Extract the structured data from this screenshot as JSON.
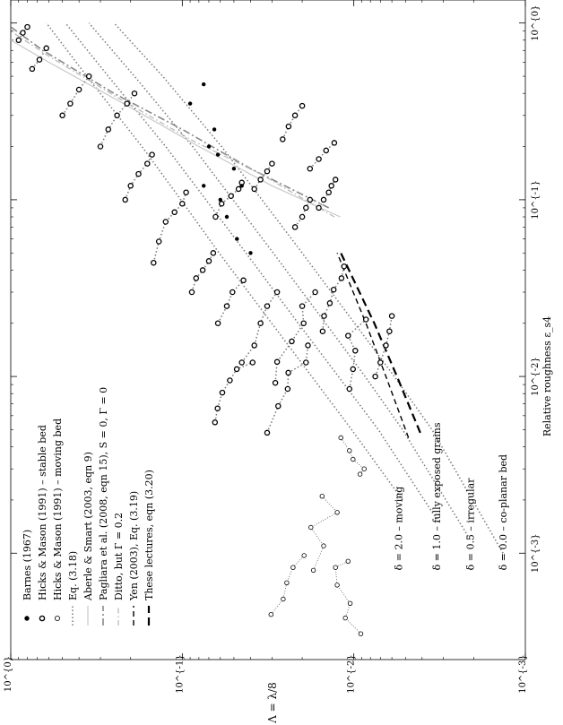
{
  "chart_data": {
    "type": "scatter",
    "orientation": "rotated-90-clockwise",
    "xscale": "log",
    "yscale": "log",
    "xlabel": "Relative roughness ε_s4",
    "ylabel": "Λ = λ/8",
    "xlim": [
      0.00025,
      1.35
    ],
    "ylim": [
      0.001,
      1.0
    ],
    "x_ticks": [
      "10^{-3}",
      "10^{-2}",
      "10^{-1}",
      "10^{0}"
    ],
    "y_ticks": [
      "10^{-3}",
      "10^{-2}",
      "10^{-1}",
      "10^{0}"
    ],
    "x_tick_values": [
      0.001,
      0.01,
      0.1,
      1
    ],
    "y_tick_values": [
      0.001,
      0.01,
      0.1,
      1
    ],
    "legend_position": "lower-left of rotated page",
    "legend": [
      {
        "label": "Barnes (1967)",
        "marker": "filled-dot",
        "color": "#000000"
      },
      {
        "label": "Hicks & Mason (1991) – stable bed",
        "marker": "open-circle-thick",
        "color": "#000000"
      },
      {
        "label": "Hicks & Mason (1991) – moving bed",
        "marker": "open-circle-thin",
        "color": "#000000"
      },
      {
        "label": "Eq. (3.18)",
        "line": "dotted",
        "color": "#777777"
      },
      {
        "label": "Aberle & Smart (2003, eqn 9)",
        "line": "solid-light",
        "color": "#c8c8c8"
      },
      {
        "label": "Pagliara et al. (2008, eqn 15), S = 0, Γ = 0",
        "line": "dash-dot",
        "color": "#888888"
      },
      {
        "label": "Ditto, but Γ = 0.2",
        "line": "dash-dot-light",
        "color": "#b5b5b5"
      },
      {
        "label": "Yen (2003), Eq. (3.19)",
        "line": "dashed",
        "color": "#000000"
      },
      {
        "label": "These lectures, eqn (3.20)",
        "line": "dashed-heavy",
        "color": "#000000"
      }
    ],
    "annotations": [
      {
        "text": "δ = 2.0 – moving",
        "x": 0.0008,
        "y": 0.0055
      },
      {
        "text": "δ = 1.0 – fully exposed grains",
        "x": 0.0008,
        "y": 0.0033
      },
      {
        "text": "δ = 0.5 – irregular",
        "x": 0.0008,
        "y": 0.0021
      },
      {
        "text": "δ = 0.0 – co-planar bed",
        "x": 0.0008,
        "y": 0.00135
      }
    ],
    "series": [
      {
        "name": "Eq. (3.18)",
        "style": "dotted",
        "points": [
          [
            0.002,
            0.0052
          ],
          [
            0.005,
            0.0103
          ],
          [
            0.01,
            0.0176
          ],
          [
            0.02,
            0.0301
          ],
          [
            0.05,
            0.061
          ],
          [
            0.1,
            0.102
          ],
          [
            0.2,
            0.172
          ],
          [
            0.5,
            0.36
          ],
          [
            1.0,
            0.62
          ]
        ]
      },
      {
        "name": "Eq. (3.18)",
        "style": "dotted",
        "points": [
          [
            0.0015,
            0.0032
          ],
          [
            0.005,
            0.0072
          ],
          [
            0.01,
            0.0123
          ],
          [
            0.02,
            0.0211
          ],
          [
            0.05,
            0.0425
          ],
          [
            0.1,
            0.0728
          ],
          [
            0.2,
            0.125
          ],
          [
            0.5,
            0.27
          ],
          [
            1.0,
            0.48
          ]
        ]
      },
      {
        "name": "Eq. (3.18)",
        "style": "dotted",
        "points": [
          [
            0.0012,
            0.0021
          ],
          [
            0.005,
            0.0052
          ],
          [
            0.01,
            0.0086
          ],
          [
            0.02,
            0.0146
          ],
          [
            0.05,
            0.0295
          ],
          [
            0.1,
            0.0506
          ],
          [
            0.2,
            0.087
          ],
          [
            0.5,
            0.19
          ],
          [
            1.0,
            0.35
          ]
        ]
      },
      {
        "name": "Eq. (3.18)",
        "style": "dotted",
        "points": [
          [
            0.001,
            0.00135
          ],
          [
            0.005,
            0.0035
          ],
          [
            0.01,
            0.0058
          ],
          [
            0.02,
            0.0099
          ],
          [
            0.05,
            0.02
          ],
          [
            0.1,
            0.0343
          ],
          [
            0.2,
            0.059
          ],
          [
            0.5,
            0.13
          ],
          [
            1.0,
            0.25
          ]
        ]
      },
      {
        "name": "Aberle & Smart (2003, eqn 9)",
        "style": "solid-light",
        "points": [
          [
            0.08,
            0.012
          ],
          [
            0.12,
            0.03
          ],
          [
            0.2,
            0.08
          ],
          [
            0.35,
            0.22
          ],
          [
            0.6,
            0.6
          ],
          [
            0.8,
            1.0
          ]
        ]
      },
      {
        "name": "Pagliara et al. (2008, eqn 15), S = 0, Γ = 0",
        "style": "dash-dot",
        "points": [
          [
            0.09,
            0.014
          ],
          [
            0.15,
            0.04
          ],
          [
            0.25,
            0.1
          ],
          [
            0.4,
            0.25
          ],
          [
            0.7,
            0.65
          ],
          [
            0.95,
            1.0
          ]
        ]
      },
      {
        "name": "Ditto, but Γ = 0.2",
        "style": "dash-dot-light",
        "points": [
          [
            0.08,
            0.013
          ],
          [
            0.14,
            0.035
          ],
          [
            0.22,
            0.09
          ],
          [
            0.38,
            0.24
          ],
          [
            0.65,
            0.6
          ],
          [
            0.9,
            1.0
          ]
        ]
      },
      {
        "name": "Yen (2003), Eq. (3.19)",
        "style": "dashed",
        "points": [
          [
            0.0045,
            0.0048
          ],
          [
            0.01,
            0.0065
          ],
          [
            0.02,
            0.0085
          ],
          [
            0.05,
            0.0125
          ]
        ]
      },
      {
        "name": "These lectures, eqn (3.20)",
        "style": "dashed-heavy",
        "points": [
          [
            0.0048,
            0.0041
          ],
          [
            0.01,
            0.0056
          ],
          [
            0.02,
            0.0076
          ],
          [
            0.05,
            0.0119
          ]
        ]
      },
      {
        "name": "Hicks & Mason (1991) – moving bed",
        "style": "dotted-thin",
        "marker": "open-circle-thin",
        "points": [
          [
            0.00045,
            0.0304
          ],
          [
            0.00055,
            0.0258
          ],
          [
            0.00068,
            0.0246
          ],
          [
            0.00083,
            0.0226
          ],
          [
            0.00097,
            0.0195
          ]
        ]
      },
      {
        "name": "Hicks & Mason (1991) – moving bed",
        "style": "dotted-thin",
        "marker": "open-circle-thin",
        "points": [
          [
            0.00035,
            0.0091
          ],
          [
            0.00043,
            0.0112
          ],
          [
            0.00052,
            0.0105
          ],
          [
            0.00066,
            0.0125
          ],
          [
            0.00083,
            0.0128
          ],
          [
            0.0009,
            0.0108
          ]
        ]
      },
      {
        "name": "Hicks & Mason (1991) – moving bed",
        "style": "dotted-thin",
        "marker": "open-circle-thin",
        "points": [
          [
            0.0008,
            0.0172
          ],
          [
            0.0011,
            0.015
          ],
          [
            0.0014,
            0.0178
          ],
          [
            0.0017,
            0.0125
          ],
          [
            0.0021,
            0.0153
          ]
        ]
      },
      {
        "name": "Hicks & Mason (1991) – moving bed",
        "style": "dotted-thin",
        "marker": "open-circle-thin",
        "points": [
          [
            0.0045,
            0.0119
          ],
          [
            0.0038,
            0.0106
          ],
          [
            0.0034,
            0.0101
          ],
          [
            0.003,
            0.0087
          ],
          [
            0.0028,
            0.0092
          ]
        ]
      },
      {
        "name": "Hicks & Mason (1991) – stable bed",
        "style": "dotted",
        "marker": "open-circle-thick",
        "points": [
          [
            0.0055,
            0.0645
          ],
          [
            0.0066,
            0.0623
          ],
          [
            0.0081,
            0.0584
          ],
          [
            0.0095,
            0.0528
          ],
          [
            0.011,
            0.0481
          ],
          [
            0.012,
            0.0389
          ]
        ]
      },
      {
        "name": "Hicks & Mason (1991) – stable bed",
        "style": "dotted",
        "marker": "open-circle-thick",
        "points": [
          [
            0.0048,
            0.032
          ],
          [
            0.0068,
            0.0276
          ],
          [
            0.0085,
            0.0243
          ],
          [
            0.0105,
            0.0241
          ],
          [
            0.012,
            0.019
          ],
          [
            0.015,
            0.0185
          ]
        ]
      },
      {
        "name": "Hicks & Mason (1991) – stable bed",
        "style": "dotted",
        "marker": "open-circle-thick",
        "points": [
          [
            0.0092,
            0.0287
          ],
          [
            0.0121,
            0.028
          ],
          [
            0.0158,
            0.023
          ],
          [
            0.02,
            0.0196
          ],
          [
            0.025,
            0.02
          ],
          [
            0.03,
            0.0168
          ]
        ]
      },
      {
        "name": "Hicks & Mason (1991) – stable bed",
        "style": "dotted",
        "marker": "open-circle-thick",
        "points": [
          [
            0.018,
            0.0152
          ],
          [
            0.022,
            0.0149
          ],
          [
            0.026,
            0.0138
          ],
          [
            0.031,
            0.0131
          ],
          [
            0.036,
            0.0118
          ],
          [
            0.042,
            0.0114
          ]
        ]
      },
      {
        "name": "Hicks & Mason (1991) – stable bed",
        "style": "dotted",
        "marker": "open-circle-thick",
        "points": [
          [
            0.0085,
            0.0106
          ],
          [
            0.011,
            0.0101
          ],
          [
            0.014,
            0.0098
          ],
          [
            0.017,
            0.0108
          ],
          [
            0.021,
            0.0085
          ]
        ]
      },
      {
        "name": "Hicks & Mason (1991) – stable bed",
        "style": "dotted",
        "marker": "open-circle-thick",
        "points": [
          [
            0.01,
            0.0075
          ],
          [
            0.012,
            0.007
          ],
          [
            0.015,
            0.0065
          ],
          [
            0.018,
            0.0062
          ],
          [
            0.022,
            0.006
          ]
        ]
      },
      {
        "name": "Hicks & Mason (1991) – stable bed",
        "style": "dotted",
        "marker": "open-circle-thick",
        "points": [
          [
            0.012,
            0.045
          ],
          [
            0.015,
            0.038
          ],
          [
            0.02,
            0.035
          ],
          [
            0.025,
            0.032
          ],
          [
            0.03,
            0.028
          ]
        ]
      },
      {
        "name": "Hicks & Mason (1991) – stable bed",
        "style": "dotted",
        "marker": "open-circle-thick",
        "points": [
          [
            0.02,
            0.062
          ],
          [
            0.025,
            0.055
          ],
          [
            0.03,
            0.051
          ],
          [
            0.035,
            0.044
          ]
        ]
      },
      {
        "name": "Hicks & Mason (1991) – stable bed",
        "style": "dotted",
        "marker": "open-circle-thick",
        "points": [
          [
            0.03,
            0.088
          ],
          [
            0.036,
            0.083
          ],
          [
            0.04,
            0.076
          ],
          [
            0.045,
            0.07
          ],
          [
            0.05,
            0.066
          ]
        ]
      },
      {
        "name": "Hicks & Mason (1991) – stable bed",
        "style": "dotted",
        "marker": "open-circle-thick",
        "points": [
          [
            0.044,
            0.147
          ],
          [
            0.058,
            0.137
          ],
          [
            0.075,
            0.125
          ],
          [
            0.085,
            0.111
          ],
          [
            0.095,
            0.1
          ],
          [
            0.11,
            0.095
          ]
        ]
      },
      {
        "name": "Hicks & Mason (1991) – stable bed",
        "style": "dotted",
        "marker": "open-circle-thick",
        "points": [
          [
            0.08,
            0.064
          ],
          [
            0.095,
            0.059
          ],
          [
            0.105,
            0.052
          ],
          [
            0.115,
            0.047
          ],
          [
            0.125,
            0.045
          ]
        ]
      },
      {
        "name": "Hicks & Mason (1991) – stable bed",
        "style": "dotted",
        "marker": "open-circle-thick",
        "points": [
          [
            0.115,
            0.038
          ],
          [
            0.13,
            0.035
          ],
          [
            0.145,
            0.032
          ],
          [
            0.16,
            0.03
          ]
        ]
      },
      {
        "name": "Hicks & Mason (1991) – stable bed",
        "style": "dotted",
        "marker": "open-circle-thick",
        "points": [
          [
            0.1,
            0.215
          ],
          [
            0.12,
            0.2
          ],
          [
            0.14,
            0.18
          ],
          [
            0.16,
            0.16
          ],
          [
            0.18,
            0.15
          ]
        ]
      },
      {
        "name": "Hicks & Mason (1991) – stable bed",
        "style": "dotted",
        "marker": "open-circle-thick",
        "points": [
          [
            0.2,
            0.3
          ],
          [
            0.25,
            0.27
          ],
          [
            0.3,
            0.24
          ],
          [
            0.35,
            0.21
          ],
          [
            0.4,
            0.19
          ]
        ]
      },
      {
        "name": "Hicks & Mason (1991) – stable bed",
        "style": "dotted",
        "marker": "open-circle-thick",
        "points": [
          [
            0.3,
            0.5
          ],
          [
            0.35,
            0.45
          ],
          [
            0.42,
            0.4
          ],
          [
            0.5,
            0.35
          ]
        ]
      },
      {
        "name": "Hicks & Mason (1991) – stable bed",
        "style": "dotted",
        "marker": "open-circle-thick",
        "points": [
          [
            0.55,
            0.75
          ],
          [
            0.62,
            0.68
          ],
          [
            0.72,
            0.62
          ]
        ]
      },
      {
        "name": "Hicks & Mason (1991) – stable bed",
        "style": "dotted",
        "marker": "open-circle-thick",
        "points": [
          [
            0.8,
            0.9
          ],
          [
            0.88,
            0.85
          ],
          [
            0.95,
            0.8
          ]
        ]
      },
      {
        "name": "Hicks & Mason (1991) – stable bed",
        "style": "dotted",
        "marker": "open-circle-thick",
        "points": [
          [
            0.15,
            0.018
          ],
          [
            0.17,
            0.016
          ],
          [
            0.19,
            0.0145
          ],
          [
            0.21,
            0.013
          ]
        ]
      },
      {
        "name": "Hicks & Mason (1991) – stable bed",
        "style": "dotted",
        "marker": "open-circle-thick",
        "points": [
          [
            0.22,
            0.026
          ],
          [
            0.26,
            0.024
          ],
          [
            0.3,
            0.022
          ],
          [
            0.34,
            0.02
          ]
        ]
      },
      {
        "name": "Hicks & Mason (1991) – stable bed",
        "style": "dotted",
        "marker": "open-circle-thick",
        "points": [
          [
            0.09,
            0.016
          ],
          [
            0.1,
            0.015
          ],
          [
            0.11,
            0.014
          ],
          [
            0.12,
            0.0135
          ],
          [
            0.13,
            0.0128
          ]
        ]
      },
      {
        "name": "Hicks & Mason (1991) – stable bed",
        "style": "dotted",
        "marker": "open-circle-thick",
        "points": [
          [
            0.07,
            0.022
          ],
          [
            0.08,
            0.02
          ],
          [
            0.09,
            0.019
          ],
          [
            0.1,
            0.018
          ]
        ]
      }
    ],
    "barnes_points": [
      [
        0.06,
        0.048
      ],
      [
        0.08,
        0.055
      ],
      [
        0.1,
        0.06
      ],
      [
        0.12,
        0.045
      ],
      [
        0.15,
        0.05
      ],
      [
        0.18,
        0.062
      ],
      [
        0.2,
        0.07
      ],
      [
        0.25,
        0.065
      ],
      [
        0.12,
        0.075
      ],
      [
        0.35,
        0.09
      ],
      [
        0.45,
        0.075
      ],
      [
        0.05,
        0.04
      ]
    ]
  }
}
